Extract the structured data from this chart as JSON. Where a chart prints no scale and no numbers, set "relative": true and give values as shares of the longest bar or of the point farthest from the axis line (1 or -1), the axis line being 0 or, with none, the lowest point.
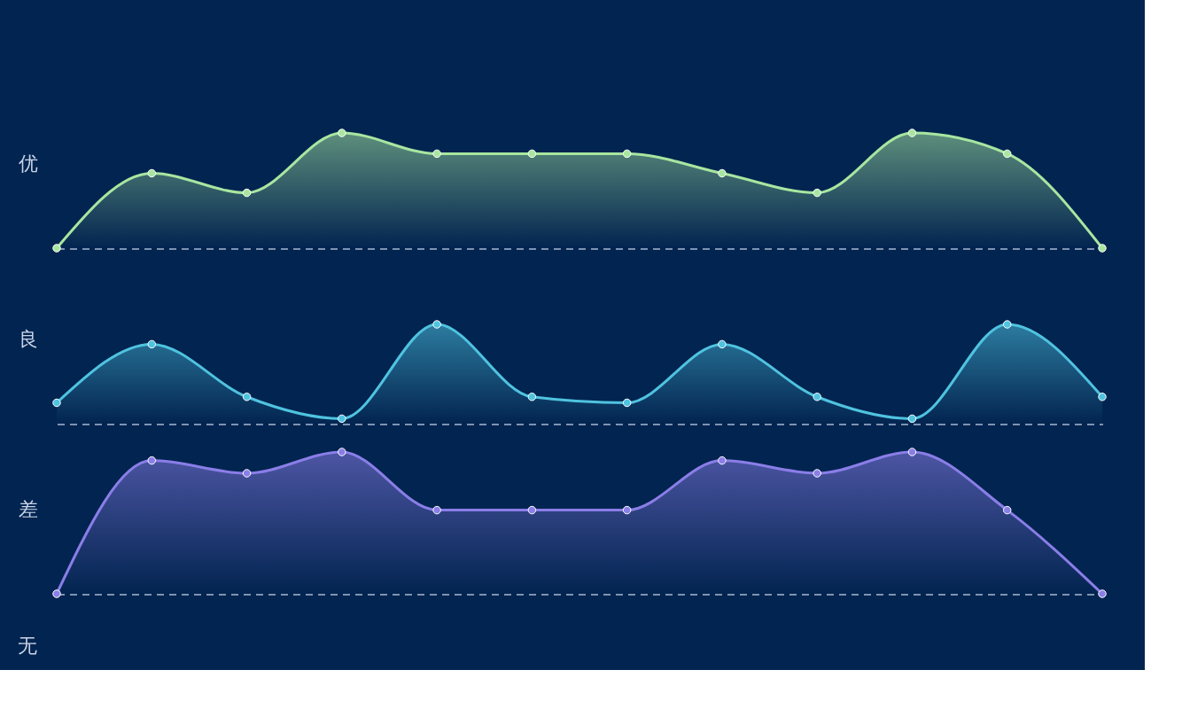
{
  "chart_data": [
    {
      "type": "area",
      "relative": true,
      "ylabel": "优",
      "categories": [
        null,
        null,
        null,
        null,
        null,
        null,
        null,
        null,
        null,
        null,
        null,
        null
      ],
      "tick_labels": false,
      "grid": false,
      "marker": "circle",
      "line_style": "solid",
      "series": [
        {
          "color": "#a8e6a0",
          "values": [
            0,
            0.65,
            0.48,
            1,
            0.82,
            0.82,
            0.82,
            0.65,
            0.48,
            1,
            0.82,
            0
          ]
        }
      ]
    },
    {
      "type": "area",
      "relative": true,
      "ylabel": "良",
      "categories": [
        null,
        null,
        null,
        null,
        null,
        null,
        null,
        null,
        null,
        null,
        null,
        null
      ],
      "tick_labels": false,
      "grid": false,
      "marker": "circle",
      "line_style": "solid",
      "series": [
        {
          "color": "#4fc3e0",
          "values": [
            0.21,
            0.8,
            0.27,
            0.05,
            1,
            0.27,
            0.21,
            0.8,
            0.27,
            0.05,
            1,
            0.27
          ]
        }
      ]
    },
    {
      "type": "area",
      "relative": true,
      "ylabel": "差",
      "categories": [
        null,
        null,
        null,
        null,
        null,
        null,
        null,
        null,
        null,
        null,
        null,
        null
      ],
      "tick_labels": false,
      "grid": false,
      "marker": "circle",
      "line_style": "solid",
      "series": [
        {
          "color": "#8a7ee8",
          "values": [
            0,
            0.94,
            0.85,
            1,
            0.59,
            0.59,
            0.59,
            0.94,
            0.85,
            1,
            0.59,
            0
          ]
        }
      ],
      "annotations": [
        "无"
      ]
    }
  ]
}
